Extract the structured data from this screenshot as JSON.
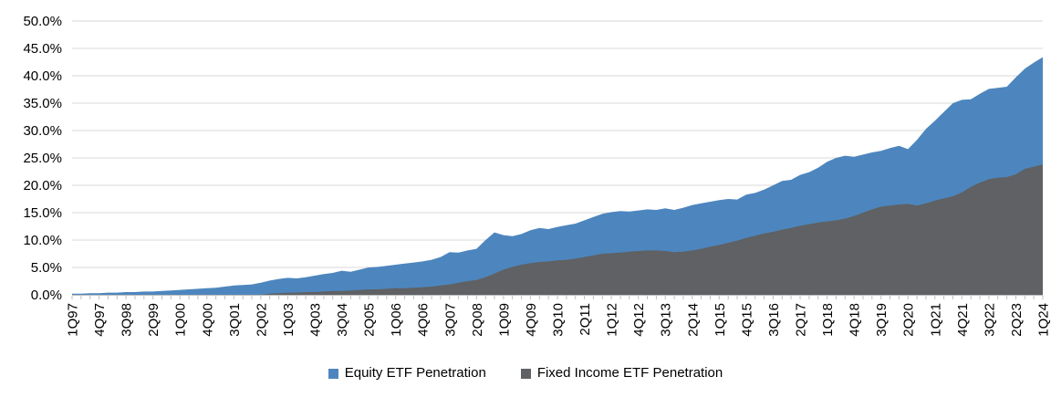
{
  "chart_data": {
    "type": "area",
    "title": "",
    "xlabel": "",
    "ylabel": "",
    "ylim": [
      0,
      50
    ],
    "y_step": 5,
    "grid": "horizontal",
    "legend_position": "bottom-center",
    "overlapping_areas": true,
    "y_tick_labels": [
      "0.0%",
      "5.0%",
      "10.0%",
      "15.0%",
      "20.0%",
      "25.0%",
      "30.0%",
      "35.0%",
      "40.0%",
      "45.0%",
      "50.0%"
    ],
    "x_tick_labels": [
      "1Q97",
      "4Q97",
      "3Q98",
      "2Q99",
      "1Q00",
      "4Q00",
      "3Q01",
      "2Q02",
      "1Q03",
      "4Q03",
      "3Q04",
      "2Q05",
      "1Q06",
      "4Q06",
      "3Q07",
      "2Q08",
      "1Q09",
      "4Q09",
      "3Q10",
      "2Q11",
      "1Q12",
      "4Q12",
      "3Q13",
      "2Q14",
      "1Q15",
      "4Q15",
      "3Q16",
      "2Q17",
      "1Q18",
      "4Q18",
      "3Q19",
      "2Q20",
      "1Q21",
      "4Q21",
      "3Q22",
      "2Q23",
      "1Q24"
    ],
    "x_label_every": 3,
    "categories": [
      "1Q97",
      "2Q97",
      "3Q97",
      "4Q97",
      "1Q98",
      "2Q98",
      "3Q98",
      "4Q98",
      "1Q99",
      "2Q99",
      "3Q99",
      "4Q99",
      "1Q00",
      "2Q00",
      "3Q00",
      "4Q00",
      "1Q01",
      "2Q01",
      "3Q01",
      "4Q01",
      "1Q02",
      "2Q02",
      "3Q02",
      "4Q02",
      "1Q03",
      "2Q03",
      "3Q03",
      "4Q03",
      "1Q04",
      "2Q04",
      "3Q04",
      "4Q04",
      "1Q05",
      "2Q05",
      "3Q05",
      "4Q05",
      "1Q06",
      "2Q06",
      "3Q06",
      "4Q06",
      "1Q07",
      "2Q07",
      "3Q07",
      "4Q07",
      "1Q08",
      "2Q08",
      "3Q08",
      "4Q08",
      "1Q09",
      "2Q09",
      "3Q09",
      "4Q09",
      "1Q10",
      "2Q10",
      "3Q10",
      "4Q10",
      "1Q11",
      "2Q11",
      "3Q11",
      "4Q11",
      "1Q12",
      "2Q12",
      "3Q12",
      "4Q12",
      "1Q13",
      "2Q13",
      "3Q13",
      "4Q13",
      "1Q14",
      "2Q14",
      "3Q14",
      "4Q14",
      "1Q15",
      "2Q15",
      "3Q15",
      "4Q15",
      "1Q16",
      "2Q16",
      "3Q16",
      "4Q16",
      "1Q17",
      "2Q17",
      "3Q17",
      "4Q17",
      "1Q18",
      "2Q18",
      "3Q18",
      "4Q18",
      "1Q19",
      "2Q19",
      "3Q19",
      "4Q19",
      "1Q20",
      "2Q20",
      "3Q20",
      "4Q20",
      "1Q21",
      "2Q21",
      "3Q21",
      "4Q21",
      "1Q22",
      "2Q22",
      "3Q22",
      "4Q22",
      "1Q23",
      "2Q23",
      "3Q23",
      "4Q23",
      "1Q24"
    ],
    "series": [
      {
        "name": "Equity ETF Penetration",
        "color": "#4D86BE",
        "values": [
          0.2,
          0.2,
          0.3,
          0.3,
          0.4,
          0.4,
          0.5,
          0.5,
          0.6,
          0.6,
          0.7,
          0.8,
          0.9,
          1.0,
          1.1,
          1.2,
          1.3,
          1.5,
          1.7,
          1.8,
          1.9,
          2.2,
          2.6,
          2.9,
          3.1,
          3.0,
          3.2,
          3.5,
          3.8,
          4.0,
          4.4,
          4.2,
          4.6,
          5.0,
          5.1,
          5.3,
          5.5,
          5.7,
          5.9,
          6.1,
          6.4,
          6.9,
          7.8,
          7.7,
          8.1,
          8.4,
          10.0,
          11.4,
          10.9,
          10.7,
          11.1,
          11.8,
          12.2,
          12.0,
          12.4,
          12.7,
          13.0,
          13.6,
          14.2,
          14.8,
          15.1,
          15.3,
          15.2,
          15.4,
          15.6,
          15.5,
          15.8,
          15.5,
          15.9,
          16.4,
          16.7,
          17.0,
          17.3,
          17.5,
          17.4,
          18.3,
          18.6,
          19.2,
          20.0,
          20.8,
          21.0,
          21.9,
          22.4,
          23.2,
          24.3,
          25.0,
          25.4,
          25.2,
          25.6,
          26.0,
          26.3,
          26.8,
          27.2,
          26.6,
          28.3,
          30.3,
          31.8,
          33.4,
          35.0,
          35.6,
          35.7,
          36.7,
          37.6,
          37.8,
          38.0,
          39.7,
          41.3,
          42.4,
          43.4
        ]
      },
      {
        "name": "Fixed Income ETF Penetration",
        "color": "#5F6164",
        "values": [
          0,
          0,
          0,
          0,
          0,
          0,
          0,
          0,
          0,
          0,
          0,
          0,
          0,
          0,
          0,
          0,
          0,
          0,
          0,
          0,
          0,
          0,
          0.2,
          0.3,
          0.4,
          0.4,
          0.5,
          0.5,
          0.6,
          0.7,
          0.7,
          0.8,
          0.9,
          1.0,
          1.0,
          1.1,
          1.2,
          1.2,
          1.3,
          1.4,
          1.5,
          1.7,
          1.9,
          2.2,
          2.5,
          2.7,
          3.2,
          3.9,
          4.6,
          5.1,
          5.5,
          5.8,
          6.0,
          6.1,
          6.3,
          6.4,
          6.6,
          6.9,
          7.2,
          7.5,
          7.6,
          7.7,
          7.9,
          8.0,
          8.1,
          8.1,
          8.0,
          7.8,
          7.9,
          8.1,
          8.4,
          8.8,
          9.1,
          9.5,
          9.9,
          10.4,
          10.8,
          11.2,
          11.5,
          11.9,
          12.2,
          12.6,
          12.9,
          13.2,
          13.4,
          13.6,
          13.9,
          14.4,
          15.0,
          15.6,
          16.1,
          16.3,
          16.5,
          16.6,
          16.3,
          16.7,
          17.2,
          17.6,
          18.0,
          18.7,
          19.7,
          20.5,
          21.1,
          21.4,
          21.5,
          22.0,
          23.0,
          23.4,
          23.8
        ]
      }
    ],
    "axis_color": "#BFBFBF",
    "gridline_color": "#D9D9D9",
    "text_color": "#000000"
  }
}
